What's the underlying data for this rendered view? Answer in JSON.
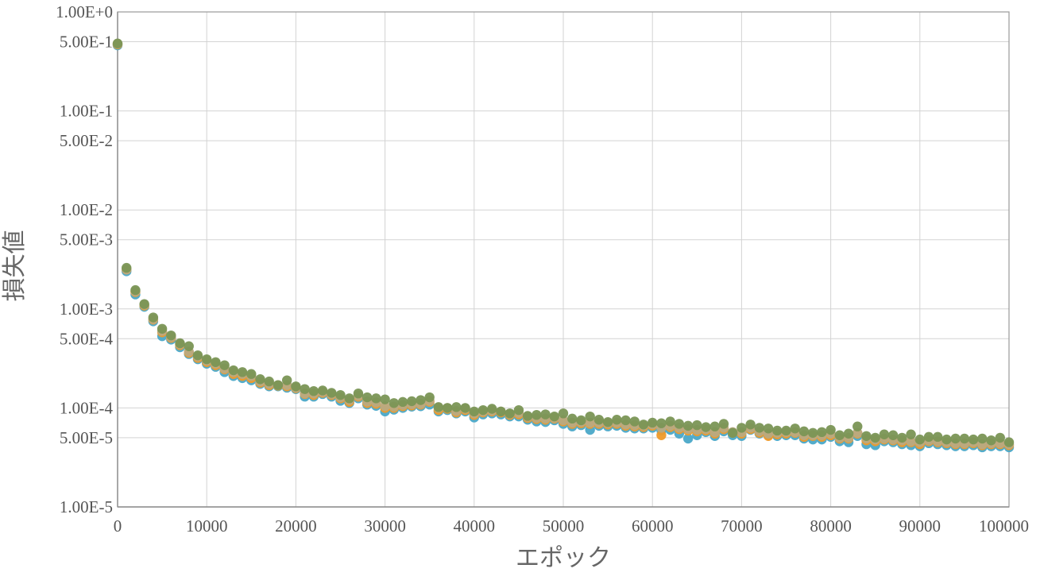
{
  "chart_data": {
    "type": "scatter",
    "title": "",
    "xlabel": "エポック",
    "ylabel": "損失値",
    "xlim": [
      0,
      100000
    ],
    "ylim": [
      1e-05,
      1
    ],
    "y_scale": "log",
    "grid": true,
    "legend": "none",
    "x_ticks": [
      "0",
      "10000",
      "20000",
      "30000",
      "40000",
      "50000",
      "60000",
      "70000",
      "80000",
      "90000",
      "100000"
    ],
    "y_ticks": [
      {
        "value": 1,
        "label": "1.00E+0"
      },
      {
        "value": 0.5,
        "label": "5.00E-1"
      },
      {
        "value": 0.1,
        "label": "1.00E-1"
      },
      {
        "value": 0.05,
        "label": "5.00E-2"
      },
      {
        "value": 0.01,
        "label": "1.00E-2"
      },
      {
        "value": 0.005,
        "label": "5.00E-3"
      },
      {
        "value": 0.001,
        "label": "1.00E-3"
      },
      {
        "value": 0.0005,
        "label": "5.00E-4"
      },
      {
        "value": 0.0001,
        "label": "1.00E-4"
      },
      {
        "value": 5e-05,
        "label": "5.00E-5"
      },
      {
        "value": 1e-05,
        "label": "1.00E-5"
      }
    ],
    "x": [
      0,
      1000,
      2000,
      3000,
      4000,
      5000,
      6000,
      7000,
      8000,
      9000,
      10000,
      11000,
      12000,
      13000,
      14000,
      15000,
      16000,
      17000,
      18000,
      19000,
      20000,
      21000,
      22000,
      23000,
      24000,
      25000,
      26000,
      27000,
      28000,
      29000,
      30000,
      31000,
      32000,
      33000,
      34000,
      35000,
      36000,
      37000,
      38000,
      39000,
      40000,
      41000,
      42000,
      43000,
      44000,
      45000,
      46000,
      47000,
      48000,
      49000,
      50000,
      51000,
      52000,
      53000,
      54000,
      55000,
      56000,
      57000,
      58000,
      59000,
      60000,
      61000,
      62000,
      63000,
      64000,
      65000,
      66000,
      67000,
      68000,
      69000,
      70000,
      71000,
      72000,
      73000,
      74000,
      75000,
      76000,
      77000,
      78000,
      79000,
      80000,
      81000,
      82000,
      83000,
      84000,
      85000,
      86000,
      87000,
      88000,
      89000,
      90000,
      91000,
      92000,
      93000,
      94000,
      95000,
      96000,
      97000,
      98000,
      99000,
      100000
    ],
    "series": [
      {
        "color": "#4aa8c8",
        "values": [
          0.46,
          0.0024,
          0.0014,
          0.00105,
          0.00075,
          0.00053,
          0.00049,
          0.00041,
          0.00035,
          0.00031,
          0.00028,
          0.00026,
          0.00023,
          0.00021,
          0.0002,
          0.00019,
          0.000175,
          0.000165,
          0.000165,
          0.00016,
          0.000155,
          0.00013,
          0.00013,
          0.000138,
          0.00013,
          0.000118,
          0.000112,
          0.000125,
          0.000108,
          0.000105,
          9.2e-05,
          9.6e-05,
          0.0001,
          0.000103,
          0.000104,
          0.000108,
          9.2e-05,
          9.5e-05,
          8.8e-05,
          9.2e-05,
          8e-05,
          8.6e-05,
          8.8e-05,
          8.6e-05,
          8.2e-05,
          8.2e-05,
          7.6e-05,
          7.3e-05,
          7.2e-05,
          7.5e-05,
          6.9e-05,
          6.5e-05,
          6.7e-05,
          6e-05,
          6.6e-05,
          6.5e-05,
          6.6e-05,
          6.3e-05,
          6.2e-05,
          6.2e-05,
          6.3e-05,
          5.9e-05,
          6e-05,
          5.5e-05,
          4.9e-05,
          5.3e-05,
          5.7e-05,
          5.2e-05,
          5.8e-05,
          5.3e-05,
          5.2e-05,
          6e-05,
          5.5e-05,
          5.3e-05,
          5.2e-05,
          5.3e-05,
          5.3e-05,
          4.9e-05,
          4.8e-05,
          4.8e-05,
          5.1e-05,
          4.6e-05,
          4.5e-05,
          5.2e-05,
          4.3e-05,
          4.2e-05,
          4.6e-05,
          4.5e-05,
          4.3e-05,
          4.2e-05,
          4.1e-05,
          4.4e-05,
          4.3e-05,
          4.2e-05,
          4.1e-05,
          4.1e-05,
          4.2e-05,
          4e-05,
          4.1e-05,
          4.1e-05,
          4e-05
        ]
      },
      {
        "color": "#f09a28",
        "values": [
          0.47,
          0.0025,
          0.00148,
          0.00108,
          0.00078,
          0.00058,
          0.00051,
          0.00043,
          0.00036,
          0.00032,
          0.00029,
          0.00027,
          0.000245,
          0.00022,
          0.00021,
          0.0002,
          0.00018,
          0.00017,
          0.000168,
          0.000165,
          0.000158,
          0.000138,
          0.000135,
          0.000142,
          0.000135,
          0.000125,
          0.000115,
          0.00013,
          0.000112,
          0.00011,
          0.0001,
          0.0001,
          0.000104,
          0.000106,
          0.000108,
          0.000115,
          9.5e-05,
          9.8e-05,
          9e-05,
          9.5e-05,
          8.5e-05,
          9e-05,
          9.2e-05,
          9e-05,
          8.5e-05,
          8.6e-05,
          7.9e-05,
          7.7e-05,
          7.6e-05,
          7.8e-05,
          7.3e-05,
          6.9e-05,
          7e-05,
          6.9e-05,
          6.9e-05,
          6.8e-05,
          6.9e-05,
          6.6e-05,
          6.5e-05,
          6.4e-05,
          6.6e-05,
          5.3e-05,
          6.4e-05,
          6.1e-05,
          5.9e-05,
          5.8e-05,
          5.9e-05,
          5.5e-05,
          6.1e-05,
          5.6e-05,
          5.5e-05,
          6.1e-05,
          5.6e-05,
          5.2e-05,
          5.4e-05,
          5.5e-05,
          5.6e-05,
          5.1e-05,
          5.2e-05,
          5.1e-05,
          5.3e-05,
          4.9e-05,
          4.9e-05,
          5.5e-05,
          4.7e-05,
          4.6e-05,
          4.8e-05,
          4.7e-05,
          4.5e-05,
          4.5e-05,
          4.3e-05,
          4.6e-05,
          4.5e-05,
          4.4e-05,
          4.3e-05,
          4.3e-05,
          4.4e-05,
          4.2e-05,
          4.3e-05,
          4.3e-05,
          4.2e-05
        ]
      },
      {
        "color": "#b9aa82",
        "values": [
          0.475,
          0.0025,
          0.0015,
          0.0011,
          0.00079,
          0.0006,
          0.00052,
          0.00044,
          0.00037,
          0.00033,
          0.0003,
          0.00028,
          0.00025,
          0.00023,
          0.00022,
          0.00021,
          0.000185,
          0.000175,
          0.00017,
          0.00017,
          0.00016,
          0.00014,
          0.00014,
          0.000145,
          0.000138,
          0.000128,
          0.00012,
          0.000133,
          0.000116,
          0.000114,
          0.000104,
          0.000103,
          0.000107,
          0.000109,
          0.00011,
          0.000118,
          0.0001,
          0.0001,
          9.3e-05,
          9.8e-05,
          8.8e-05,
          9.2e-05,
          9.4e-05,
          9.2e-05,
          8.7e-05,
          8.9e-05,
          8.1e-05,
          7.9e-05,
          7.8e-05,
          7.9e-05,
          7.5e-05,
          7.1e-05,
          7.2e-05,
          7.1e-05,
          7.1e-05,
          7e-05,
          7.1e-05,
          6.8e-05,
          6.7e-05,
          6.6e-05,
          6.8e-05,
          6.3e-05,
          6.6e-05,
          6.3e-05,
          6.1e-05,
          6e-05,
          6.1e-05,
          5.7e-05,
          6.3e-05,
          5.7e-05,
          5.7e-05,
          6.3e-05,
          5.8e-05,
          5.5e-05,
          5.6e-05,
          5.7e-05,
          5.7e-05,
          5.3e-05,
          5.3e-05,
          5.3e-05,
          5.5e-05,
          5e-05,
          5e-05,
          5.6e-05,
          4.9e-05,
          4.8e-05,
          4.9e-05,
          4.8e-05,
          4.7e-05,
          4.6e-05,
          4.5e-05,
          4.7e-05,
          4.6e-05,
          4.5e-05,
          4.4e-05,
          4.4e-05,
          4.5e-05,
          4.3e-05,
          4.4e-05,
          4.4e-05,
          4.3e-05
        ]
      },
      {
        "color": "#7a9555",
        "values": [
          0.48,
          0.0026,
          0.00155,
          0.00112,
          0.00082,
          0.00063,
          0.00054,
          0.00045,
          0.00042,
          0.00034,
          0.00031,
          0.00029,
          0.00027,
          0.00024,
          0.00023,
          0.00022,
          0.000195,
          0.000185,
          0.00017,
          0.00019,
          0.000165,
          0.000155,
          0.000148,
          0.00015,
          0.000142,
          0.000135,
          0.000125,
          0.00014,
          0.000128,
          0.000125,
          0.000122,
          0.000112,
          0.000115,
          0.000117,
          0.00012,
          0.000128,
          0.000102,
          0.0001,
          0.000102,
          0.0001,
          9.2e-05,
          9.5e-05,
          9.8e-05,
          9.2e-05,
          8.8e-05,
          9.5e-05,
          8.3e-05,
          8.5e-05,
          8.6e-05,
          8.2e-05,
          8.8e-05,
          7.8e-05,
          7.5e-05,
          8.2e-05,
          7.6e-05,
          7.2e-05,
          7.6e-05,
          7.5e-05,
          7.3e-05,
          6.8e-05,
          7.1e-05,
          7e-05,
          7.3e-05,
          6.9e-05,
          6.6e-05,
          6.7e-05,
          6.4e-05,
          6.5e-05,
          6.9e-05,
          5.6e-05,
          6.3e-05,
          6.8e-05,
          6.3e-05,
          6.2e-05,
          5.9e-05,
          5.9e-05,
          6.2e-05,
          5.8e-05,
          5.6e-05,
          5.7e-05,
          6e-05,
          5.3e-05,
          5.5e-05,
          6.5e-05,
          5.2e-05,
          5e-05,
          5.4e-05,
          5.3e-05,
          5e-05,
          5.4e-05,
          4.8e-05,
          5.1e-05,
          5.1e-05,
          4.8e-05,
          4.9e-05,
          4.9e-05,
          4.8e-05,
          4.9e-05,
          4.7e-05,
          5e-05,
          4.5e-05
        ]
      }
    ]
  }
}
